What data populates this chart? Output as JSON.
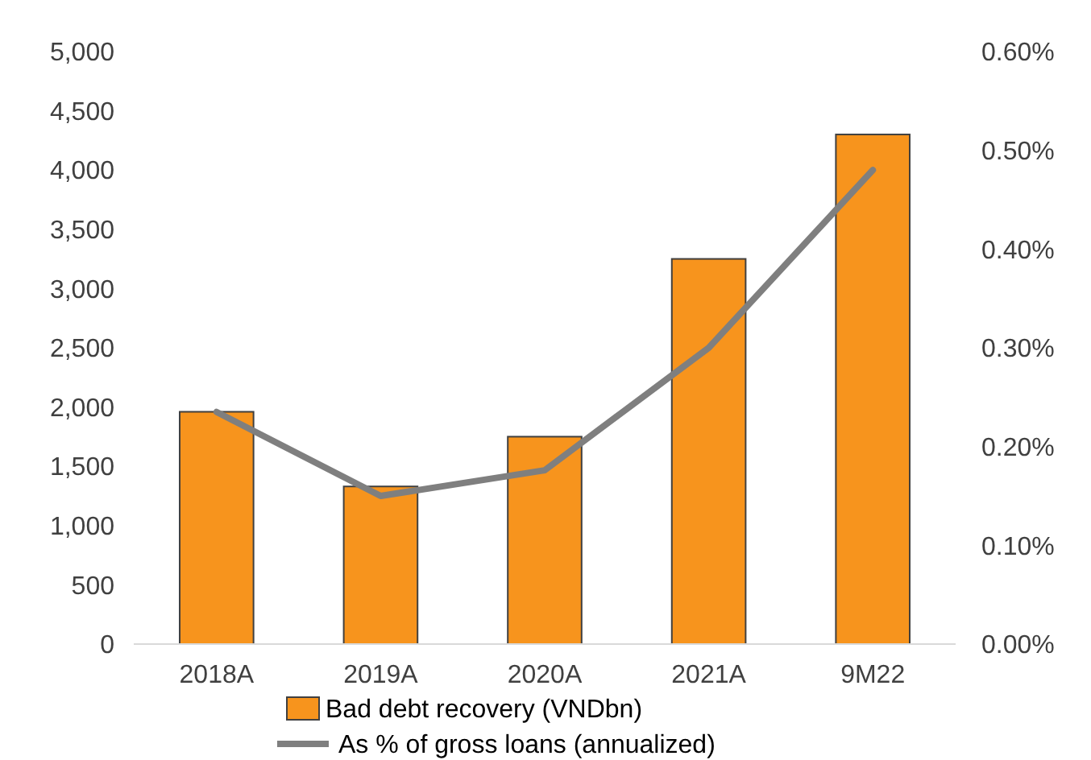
{
  "chart_data": {
    "type": "bar",
    "categories": [
      "2018A",
      "2019A",
      "2020A",
      "2021A",
      "9M22"
    ],
    "series": [
      {
        "name": "Bad debt recovery (VNDbn)",
        "color": "#f7941d",
        "values": [
          1960,
          1330,
          1750,
          3250,
          4300
        ]
      },
      {
        "name": "As % of gross loans (annualized)",
        "type": "line",
        "axis": "y2",
        "color": "#7f7f7f",
        "values": [
          0.235,
          0.15,
          0.176,
          0.3,
          0.48
        ]
      }
    ],
    "ylim": [
      0,
      5000
    ],
    "yticks": [
      {
        "value": 0,
        "label": "0"
      },
      {
        "value": 500,
        "label": "500"
      },
      {
        "value": 1000,
        "label": "1,000"
      },
      {
        "value": 1500,
        "label": "1,500"
      },
      {
        "value": 2000,
        "label": "2,000"
      },
      {
        "value": 2500,
        "label": "2,500"
      },
      {
        "value": 3000,
        "label": "3,000"
      },
      {
        "value": 3500,
        "label": "3,500"
      },
      {
        "value": 4000,
        "label": "4,000"
      },
      {
        "value": 4500,
        "label": "4,500"
      },
      {
        "value": 5000,
        "label": "5,000"
      }
    ],
    "y2lim": [
      0,
      0.6
    ],
    "y2ticks": [
      {
        "value": 0,
        "label": "0.00%"
      },
      {
        "value": 0.1,
        "label": "0.10%"
      },
      {
        "value": 0.2,
        "label": "0.20%"
      },
      {
        "value": 0.3,
        "label": "0.30%"
      },
      {
        "value": 0.4,
        "label": "0.40%"
      },
      {
        "value": 0.5,
        "label": "0.50%"
      },
      {
        "value": 0.6,
        "label": "0.60%"
      }
    ],
    "legend": "bottom",
    "grid": false,
    "marker": "none",
    "line_style": "solid"
  }
}
